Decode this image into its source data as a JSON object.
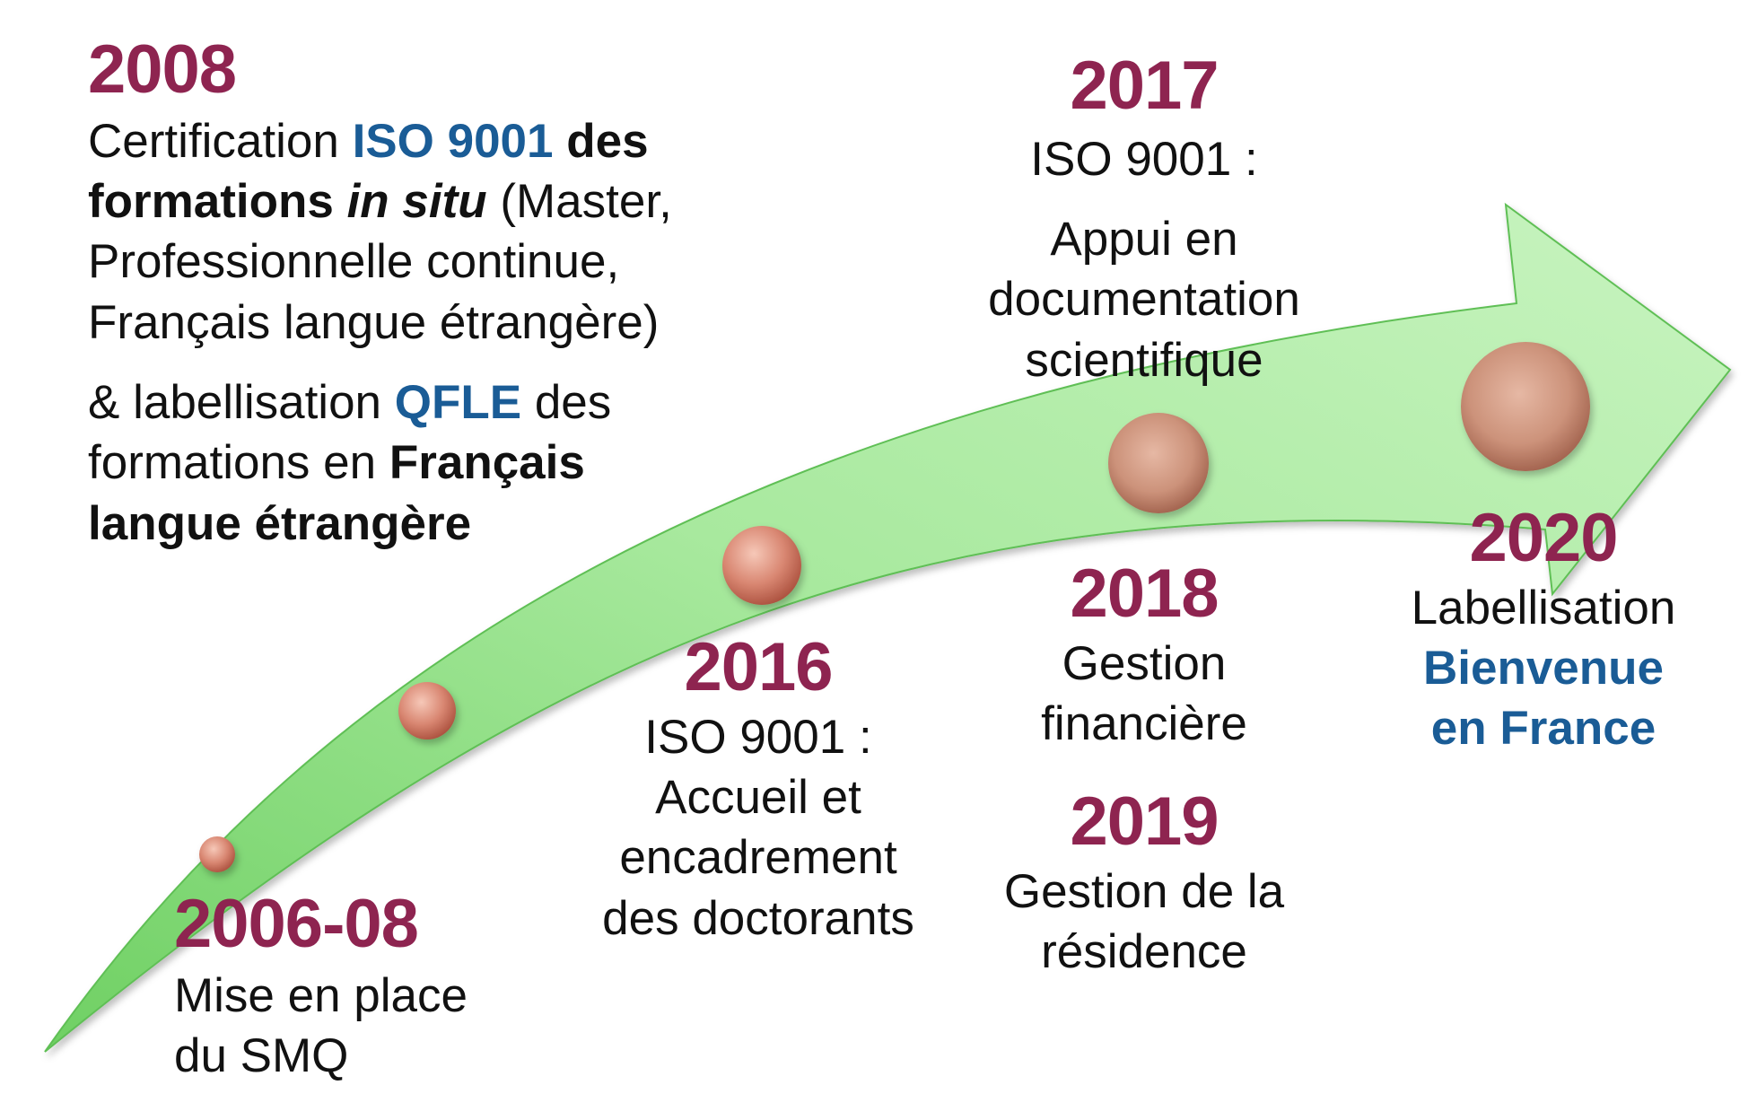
{
  "colors": {
    "year": "#8e2450",
    "highlight": "#1a5c96",
    "arrow_fill": "#a6e89b",
    "arrow_stroke": "#5fbf55",
    "milestone": "#cf7a62"
  },
  "milestones": [
    {
      "year": "2006-08",
      "lines": [
        "Mise en place",
        "du SMQ"
      ]
    },
    {
      "year": "2008",
      "line1": {
        "a": "Certification ",
        "b": "ISO 9001",
        "c": " des"
      },
      "line2": {
        "a": "formations ",
        "b": "in situ",
        "c": " (Master,"
      },
      "line3": "Professionnelle continue,",
      "line4": "Français langue étrangère)",
      "line5": {
        "a": "& labellisation ",
        "b": "QFLE",
        "c": " des"
      },
      "line6": {
        "a": "formations en ",
        "b": "Français"
      },
      "line7": "langue étrangère"
    },
    {
      "year": "2016",
      "lines": [
        "ISO 9001 :",
        "Accueil et",
        "encadrement",
        "des doctorants"
      ]
    },
    {
      "year": "2017",
      "lines": [
        "ISO 9001 :",
        "Appui en",
        "documentation",
        "scientifique"
      ]
    },
    {
      "year": "2018",
      "lines": [
        "Gestion",
        "financière"
      ]
    },
    {
      "year": "2019",
      "lines": [
        "Gestion de la",
        "résidence"
      ]
    },
    {
      "year": "2020",
      "lines": [
        "Labellisation",
        "Bienvenue",
        "en France"
      ]
    }
  ]
}
